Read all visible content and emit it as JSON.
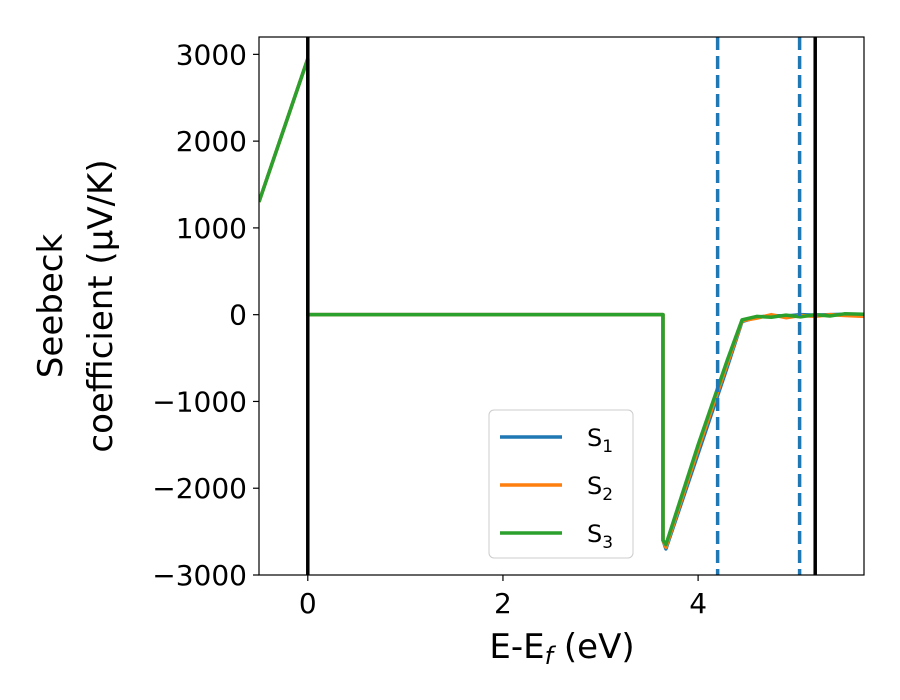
{
  "chart_data": {
    "type": "line",
    "title": "",
    "xlabel": "E-E",
    "xlabel_sub": "f",
    "xlabel_unit": " (eV)",
    "ylabel_line1": "Seebeck",
    "ylabel_line2": "coefficient  (μV/K)",
    "xlim": [
      -0.5,
      5.7
    ],
    "ylim": [
      -3000,
      3200
    ],
    "xticks": [
      0,
      2,
      4
    ],
    "xtick_labels": [
      "0",
      "2",
      "4"
    ],
    "yticks": [
      -3000,
      -2000,
      -1000,
      0,
      1000,
      2000,
      3000
    ],
    "ytick_labels": [
      "−3000",
      "−2000",
      "−1000",
      "0",
      "1000",
      "2000",
      "3000"
    ],
    "grid": false,
    "legend_placement": "lower-center",
    "series": [
      {
        "name": "S",
        "name_sub": "1",
        "color": "#1f77b4",
        "x": [
          -0.5,
          0.0,
          0.0,
          3.64,
          3.64,
          3.67,
          4.0,
          4.3,
          4.45,
          4.6,
          4.75,
          4.9,
          5.05,
          5.2,
          5.35,
          5.5,
          5.7
        ],
        "y": [
          1300,
          2950,
          0,
          0,
          -2600,
          -2700,
          -1600,
          -600,
          -80,
          -30,
          -10,
          -15,
          0,
          -5,
          0,
          5,
          0
        ]
      },
      {
        "name": "S",
        "name_sub": "2",
        "color": "#ff7f0e",
        "x": [
          -0.5,
          0.0,
          0.0,
          3.64,
          3.64,
          3.67,
          4.0,
          4.3,
          4.45,
          4.6,
          4.75,
          4.9,
          5.05,
          5.2,
          5.35,
          5.5,
          5.7
        ],
        "y": [
          1300,
          2950,
          0,
          0,
          -2600,
          -2680,
          -1550,
          -560,
          -70,
          -40,
          0,
          -35,
          -10,
          -20,
          0,
          -10,
          -20
        ]
      },
      {
        "name": "S",
        "name_sub": "3",
        "color": "#2ca02c",
        "x": [
          -0.5,
          0.0,
          0.0,
          3.64,
          3.64,
          3.67,
          4.0,
          4.3,
          4.45,
          4.6,
          4.75,
          4.9,
          5.05,
          5.2,
          5.35,
          5.5,
          5.7
        ],
        "y": [
          1300,
          2950,
          0,
          0,
          -2600,
          -2650,
          -1500,
          -520,
          -60,
          -20,
          -30,
          -5,
          -25,
          0,
          -15,
          10,
          5
        ]
      }
    ],
    "vlines": [
      {
        "x": 0.0,
        "color": "#000000",
        "style": "solid"
      },
      {
        "x": 4.2,
        "color": "#1f77b4",
        "style": "dashed"
      },
      {
        "x": 5.04,
        "color": "#1f77b4",
        "style": "dashed"
      },
      {
        "x": 5.2,
        "color": "#000000",
        "style": "solid"
      }
    ]
  }
}
